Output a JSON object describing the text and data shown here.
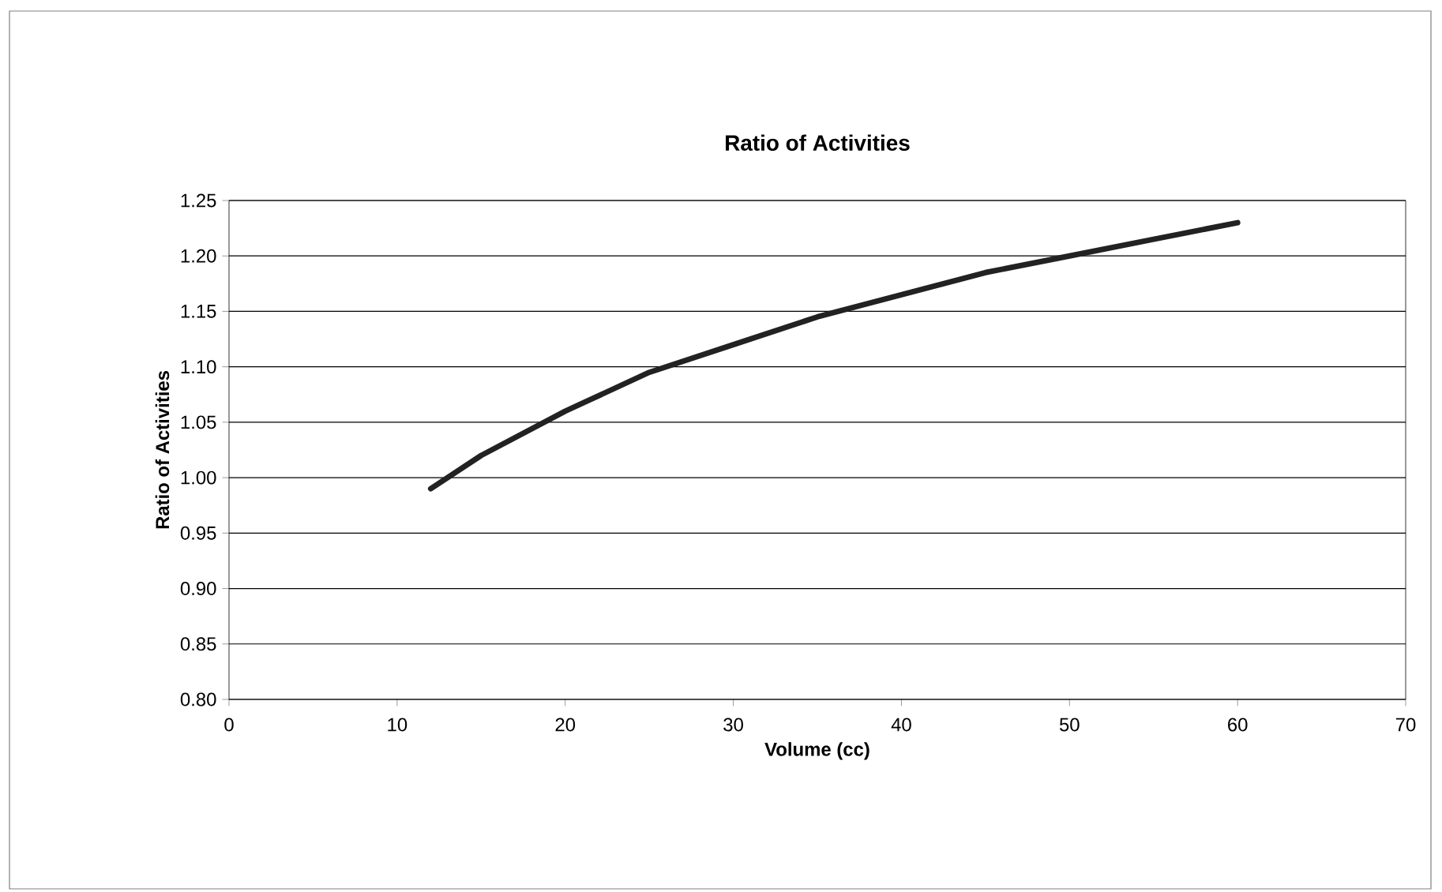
{
  "chart_data": {
    "type": "line",
    "title": "Ratio of Activities",
    "xlabel": "Volume (cc)",
    "ylabel": "Ratio of Activities",
    "x": [
      12,
      15,
      20,
      25,
      30,
      35,
      40,
      45,
      50,
      55,
      60
    ],
    "series": [
      {
        "color": "#222222",
        "values": [
          0.99,
          1.02,
          1.06,
          1.095,
          1.12,
          1.145,
          1.165,
          1.185,
          1.2,
          1.215,
          1.23
        ]
      }
    ],
    "xlim": [
      0,
      70
    ],
    "xticks": [
      0,
      10,
      20,
      30,
      40,
      50,
      60,
      70
    ],
    "ylim": [
      0.8,
      1.25
    ],
    "yticks": [
      {
        "value": 0.8,
        "label": "0.80"
      },
      {
        "value": 0.85,
        "label": "0.85"
      },
      {
        "value": 0.9,
        "label": "0.90"
      },
      {
        "value": 0.95,
        "label": "0.95"
      },
      {
        "value": 1.0,
        "label": "1.00"
      },
      {
        "value": 1.05,
        "label": "1.05"
      },
      {
        "value": 1.1,
        "label": "1.10"
      },
      {
        "value": 1.15,
        "label": "1.15"
      },
      {
        "value": 1.2,
        "label": "1.20"
      },
      {
        "value": 1.25,
        "label": "1.25"
      }
    ],
    "grid": "y",
    "marker": "none",
    "line_style": "solid"
  }
}
